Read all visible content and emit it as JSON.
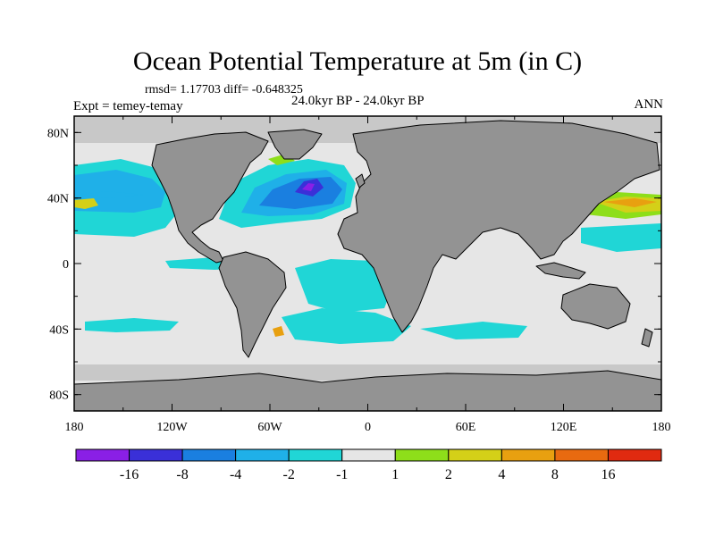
{
  "title": "Ocean Potential Temperature at 5m (in C)",
  "stats": "rmsd= 1.17703 diff= -0.648325",
  "expt": "Expt = temey-temay",
  "period": "24.0kyr BP - 24.0kyr BP",
  "season": "ANN",
  "map": {
    "lon_range": [
      -180,
      180
    ],
    "lat_range": [
      -90,
      90
    ],
    "x_ticks": [
      "180",
      "120W",
      "60W",
      "0",
      "60E",
      "120E",
      "180"
    ],
    "y_ticks": [
      "80N",
      "40N",
      "0",
      "40S",
      "80S"
    ],
    "colors": {
      "land": "#939393",
      "near_zero": "#e6e6e6",
      "ice_edge": "#c8c8c8"
    }
  },
  "colorbar": {
    "labels": [
      "-16",
      "-8",
      "-4",
      "-2",
      "-1",
      "1",
      "2",
      "4",
      "8",
      "16"
    ],
    "colors": [
      "#8a1fe6",
      "#3a30d8",
      "#1a7fe0",
      "#1fb0e8",
      "#20d6d6",
      "#e6e6e6",
      "#8ede1a",
      "#d4d018",
      "#e8a010",
      "#e86a10",
      "#e02a10"
    ]
  }
}
